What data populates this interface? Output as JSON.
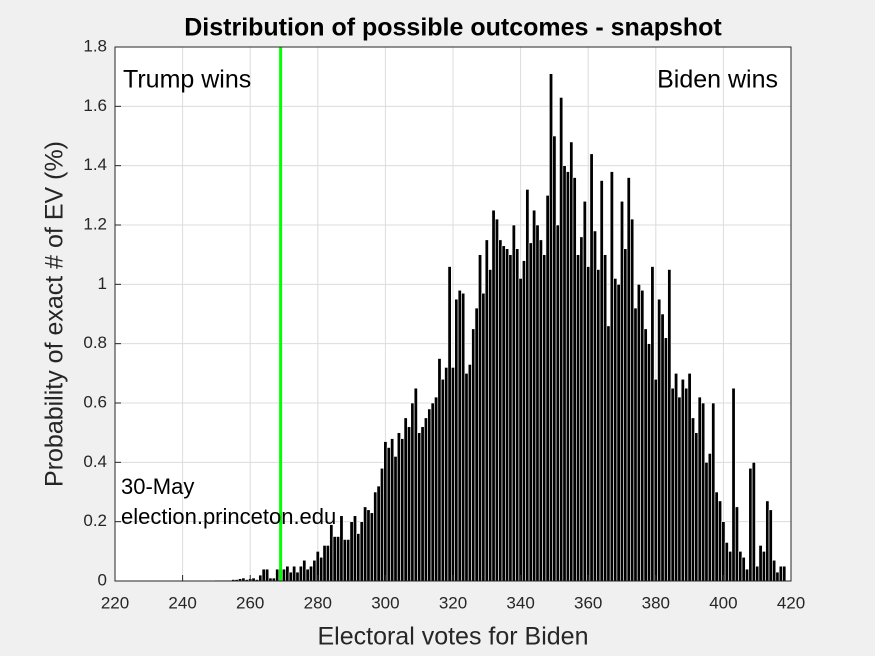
{
  "chart_data": {
    "type": "bar",
    "title": "Distribution of possible outcomes - snapshot",
    "xlabel": "Electoral votes for Biden",
    "ylabel": "Probability of exact # of EV (%)",
    "annotations": [
      "Trump wins",
      "Biden wins",
      "30-May",
      "election.princeton.edu"
    ],
    "vline": {
      "x": 269,
      "color": "#00ff00"
    },
    "color": "#000000",
    "grid": true,
    "xlim": [
      220,
      420
    ],
    "xticks": [
      220,
      240,
      260,
      280,
      300,
      320,
      340,
      360,
      380,
      400,
      420
    ],
    "ylim": [
      0,
      1.8
    ],
    "yticks": [
      0,
      0.2,
      0.4,
      0.6,
      0.8,
      1,
      1.2,
      1.4,
      1.6,
      1.8
    ],
    "x": [
      250,
      251,
      252,
      253,
      254,
      255,
      256,
      257,
      258,
      259,
      260,
      261,
      262,
      263,
      264,
      265,
      266,
      267,
      268,
      269,
      270,
      271,
      272,
      273,
      274,
      275,
      276,
      277,
      278,
      279,
      280,
      281,
      282,
      283,
      284,
      285,
      286,
      287,
      288,
      289,
      290,
      291,
      292,
      293,
      294,
      295,
      296,
      297,
      298,
      299,
      300,
      301,
      302,
      303,
      304,
      305,
      306,
      307,
      308,
      309,
      310,
      311,
      312,
      313,
      314,
      315,
      316,
      317,
      318,
      319,
      320,
      321,
      322,
      323,
      324,
      325,
      326,
      327,
      328,
      329,
      330,
      331,
      332,
      333,
      334,
      335,
      336,
      337,
      338,
      339,
      340,
      341,
      342,
      343,
      344,
      345,
      346,
      347,
      348,
      349,
      350,
      351,
      352,
      353,
      354,
      355,
      356,
      357,
      358,
      359,
      360,
      361,
      362,
      363,
      364,
      365,
      366,
      367,
      368,
      369,
      370,
      371,
      372,
      373,
      374,
      375,
      376,
      377,
      378,
      379,
      380,
      381,
      382,
      383,
      384,
      385,
      386,
      387,
      388,
      389,
      390,
      391,
      392,
      393,
      394,
      395,
      396,
      397,
      398,
      399,
      400,
      401,
      402,
      403,
      404,
      405,
      406,
      407,
      408,
      409,
      410,
      411,
      412,
      413,
      414,
      415,
      416,
      417,
      418
    ],
    "values": [
      0.003,
      0.003,
      0.003,
      0.003,
      0.003,
      0.005,
      0.005,
      0.008,
      0.01,
      0.005,
      0.008,
      0.01,
      0.005,
      0.02,
      0.04,
      0.04,
      0.01,
      0.01,
      0.04,
      0.04,
      0.04,
      0.05,
      0.03,
      0.05,
      0.03,
      0.05,
      0.07,
      0.04,
      0.05,
      0.07,
      0.1,
      0.08,
      0.12,
      0.12,
      0.19,
      0.15,
      0.15,
      0.22,
      0.14,
      0.14,
      0.2,
      0.22,
      0.16,
      0.2,
      0.25,
      0.24,
      0.23,
      0.3,
      0.32,
      0.38,
      0.47,
      0.45,
      0.48,
      0.42,
      0.5,
      0.48,
      0.55,
      0.52,
      0.6,
      0.65,
      0.5,
      0.52,
      0.55,
      0.58,
      0.6,
      0.62,
      0.75,
      0.68,
      0.72,
      1.06,
      0.72,
      0.95,
      0.98,
      0.97,
      0.7,
      0.73,
      0.85,
      0.92,
      1.1,
      0.97,
      1.15,
      1.05,
      1.25,
      1.22,
      1.15,
      1.13,
      1.12,
      1.1,
      1.2,
      1.12,
      1.02,
      1.08,
      1.32,
      1.14,
      1.25,
      1.2,
      1.15,
      1.1,
      1.3,
      1.71,
      1.5,
      1.2,
      1.63,
      1.4,
      1.38,
      1.48,
      1.36,
      1.1,
      1.16,
      1.28,
      1.06,
      1.44,
      1.18,
      1.05,
      1.35,
      1.1,
      0.86,
      1.38,
      1.02,
      1.0,
      1.28,
      1.12,
      1.36,
      1.22,
      0.92,
      1.0,
      0.98,
      0.85,
      0.8,
      1.06,
      0.68,
      0.95,
      0.9,
      0.82,
      1.05,
      0.65,
      0.7,
      0.62,
      0.68,
      0.65,
      0.7,
      0.55,
      0.5,
      0.62,
      0.6,
      0.4,
      0.43,
      0.6,
      0.3,
      0.27,
      0.2,
      0.13,
      0.1,
      0.65,
      0.25,
      0.1,
      0.08,
      0.04,
      0.38,
      0.4,
      0.05,
      0.12,
      0.1,
      0.27,
      0.24,
      0.07,
      0.03,
      0.05,
      0.05
    ]
  }
}
